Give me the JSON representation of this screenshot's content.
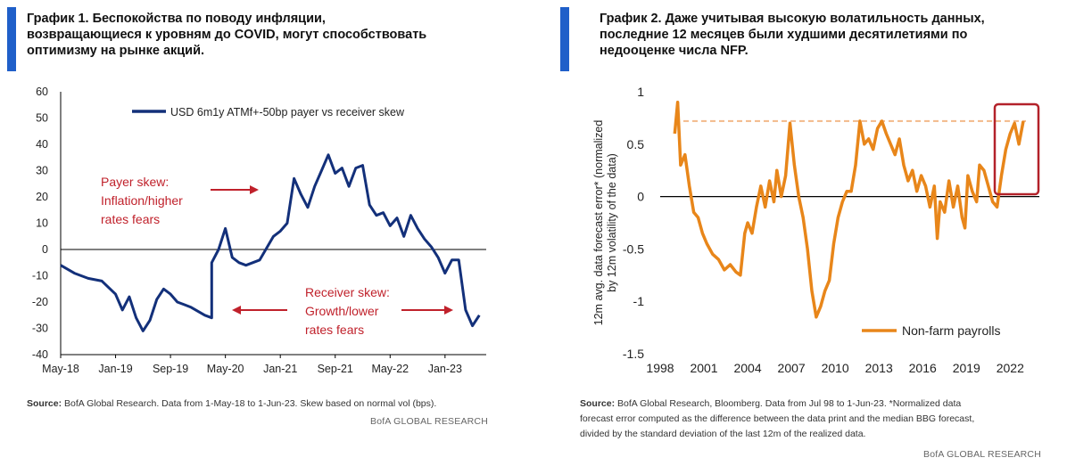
{
  "chart_data": [
    {
      "type": "line",
      "title_lines": [
        "График 1. Беспокойства по поводу инфляции,",
        "возвращающиеся к уровням до COVID, могут способствовать",
        "оптимизму на рынке акций."
      ],
      "legend": "USD 6m1y ATMf+-50bp payer vs receiver skew",
      "ylim": [
        -40,
        60
      ],
      "yticks": [
        "60",
        "50",
        "40",
        "30",
        "20",
        "10",
        "0",
        "-10",
        "-20",
        "-30",
        "-40"
      ],
      "xticks": [
        "May-18",
        "Jan-19",
        "Sep-19",
        "May-20",
        "Jan-21",
        "Sep-21",
        "May-22",
        "Jan-23"
      ],
      "series": [
        {
          "name": "USD 6m1y ATMf+-50bp payer vs receiver skew",
          "color": "#13307a",
          "points": [
            [
              "2018-05",
              -6
            ],
            [
              "2018-07",
              -9
            ],
            [
              "2018-09",
              -11
            ],
            [
              "2018-11",
              -12
            ],
            [
              "2019-01",
              -17
            ],
            [
              "2019-02",
              -23
            ],
            [
              "2019-03",
              -18
            ],
            [
              "2019-04",
              -26
            ],
            [
              "2019-05",
              -31
            ],
            [
              "2019-06",
              -27
            ],
            [
              "2019-07",
              -19
            ],
            [
              "2019-08",
              -15
            ],
            [
              "2019-09",
              -17
            ],
            [
              "2019-10",
              -20
            ],
            [
              "2019-11",
              -21
            ],
            [
              "2019-12",
              -22
            ],
            [
              "2020-02",
              -25
            ],
            [
              "2020-03",
              -26
            ],
            [
              "2020-03",
              -5
            ],
            [
              "2020-04",
              0
            ],
            [
              "2020-05",
              8
            ],
            [
              "2020-06",
              -3
            ],
            [
              "2020-07",
              -5
            ],
            [
              "2020-08",
              -6
            ],
            [
              "2020-10",
              -4
            ],
            [
              "2020-12",
              5
            ],
            [
              "2021-01",
              7
            ],
            [
              "2021-02",
              10
            ],
            [
              "2021-03",
              27
            ],
            [
              "2021-04",
              21
            ],
            [
              "2021-05",
              16
            ],
            [
              "2021-06",
              24
            ],
            [
              "2021-07",
              30
            ],
            [
              "2021-08",
              36
            ],
            [
              "2021-09",
              29
            ],
            [
              "2021-10",
              31
            ],
            [
              "2021-11",
              24
            ],
            [
              "2021-12",
              31
            ],
            [
              "2022-01",
              32
            ],
            [
              "2022-02",
              17
            ],
            [
              "2022-03",
              13
            ],
            [
              "2022-04",
              14
            ],
            [
              "2022-05",
              9
            ],
            [
              "2022-06",
              12
            ],
            [
              "2022-07",
              5
            ],
            [
              "2022-08",
              13
            ],
            [
              "2022-09",
              8
            ],
            [
              "2022-10",
              4
            ],
            [
              "2022-11",
              1
            ],
            [
              "2022-12",
              -3
            ],
            [
              "2023-01",
              -9
            ],
            [
              "2023-02",
              -4
            ],
            [
              "2023-03",
              -4
            ],
            [
              "2023-04",
              -23
            ],
            [
              "2023-05",
              -29
            ],
            [
              "2023-06",
              -25
            ]
          ]
        }
      ],
      "annotations": [
        {
          "lines": [
            "Payer skew:",
            "Inflation/higher",
            "rates fears"
          ],
          "color": "#c0212b"
        },
        {
          "lines": [
            "Receiver skew:",
            "Growth/lower",
            "rates fears"
          ],
          "color": "#c0212b"
        }
      ]
    },
    {
      "type": "line",
      "title_lines": [
        "График 2. Даже учитывая высокую волатильность данных,",
        "последние 12 месяцев были худшими десятилетиями по",
        "недооценке числа NFP."
      ],
      "ylabel_lines": [
        "12m avg. data forecast error* (normalized",
        "by 12m volatility of the data)"
      ],
      "legend": "Non-farm payrolls",
      "ylim": [
        -1.5,
        1
      ],
      "yticks": [
        "1",
        "0.5",
        "0",
        "-0.5",
        "-1",
        "-1.5"
      ],
      "xlim": [
        1998,
        2024
      ],
      "xticks": [
        "1998",
        "2001",
        "2004",
        "2007",
        "2010",
        "2013",
        "2016",
        "2019",
        "2022"
      ],
      "series": [
        {
          "name": "Non-farm payrolls",
          "color": "#e8861a",
          "points": [
            [
              1999.0,
              0.6
            ],
            [
              1999.2,
              0.9
            ],
            [
              1999.4,
              0.3
            ],
            [
              1999.7,
              0.4
            ],
            [
              2000.0,
              0.1
            ],
            [
              2000.3,
              -0.15
            ],
            [
              2000.6,
              -0.2
            ],
            [
              2000.9,
              -0.35
            ],
            [
              2001.2,
              -0.45
            ],
            [
              2001.6,
              -0.55
            ],
            [
              2002.0,
              -0.6
            ],
            [
              2002.4,
              -0.7
            ],
            [
              2002.8,
              -0.65
            ],
            [
              2003.2,
              -0.72
            ],
            [
              2003.5,
              -0.75
            ],
            [
              2003.8,
              -0.35
            ],
            [
              2004.0,
              -0.25
            ],
            [
              2004.3,
              -0.35
            ],
            [
              2004.6,
              -0.1
            ],
            [
              2004.9,
              0.1
            ],
            [
              2005.2,
              -0.1
            ],
            [
              2005.5,
              0.15
            ],
            [
              2005.8,
              -0.05
            ],
            [
              2006.0,
              0.25
            ],
            [
              2006.3,
              0.0
            ],
            [
              2006.6,
              0.2
            ],
            [
              2006.9,
              0.7
            ],
            [
              2007.2,
              0.3
            ],
            [
              2007.5,
              0.0
            ],
            [
              2007.8,
              -0.2
            ],
            [
              2008.1,
              -0.5
            ],
            [
              2008.4,
              -0.9
            ],
            [
              2008.7,
              -1.15
            ],
            [
              2009.0,
              -1.05
            ],
            [
              2009.3,
              -0.9
            ],
            [
              2009.6,
              -0.8
            ],
            [
              2009.9,
              -0.45
            ],
            [
              2010.2,
              -0.2
            ],
            [
              2010.5,
              -0.05
            ],
            [
              2010.8,
              0.05
            ],
            [
              2011.1,
              0.05
            ],
            [
              2011.4,
              0.3
            ],
            [
              2011.7,
              0.72
            ],
            [
              2012.0,
              0.5
            ],
            [
              2012.3,
              0.55
            ],
            [
              2012.6,
              0.45
            ],
            [
              2012.9,
              0.65
            ],
            [
              2013.2,
              0.72
            ],
            [
              2013.5,
              0.6
            ],
            [
              2013.8,
              0.5
            ],
            [
              2014.1,
              0.4
            ],
            [
              2014.4,
              0.55
            ],
            [
              2014.7,
              0.3
            ],
            [
              2015.0,
              0.15
            ],
            [
              2015.3,
              0.25
            ],
            [
              2015.6,
              0.05
            ],
            [
              2015.9,
              0.2
            ],
            [
              2016.2,
              0.1
            ],
            [
              2016.5,
              -0.1
            ],
            [
              2016.8,
              0.1
            ],
            [
              2017.0,
              -0.4
            ],
            [
              2017.2,
              -0.05
            ],
            [
              2017.5,
              -0.15
            ],
            [
              2017.8,
              0.15
            ],
            [
              2018.1,
              -0.1
            ],
            [
              2018.4,
              0.1
            ],
            [
              2018.7,
              -0.2
            ],
            [
              2018.9,
              -0.3
            ],
            [
              2019.1,
              0.2
            ],
            [
              2019.4,
              0.05
            ],
            [
              2019.7,
              -0.05
            ],
            [
              2019.9,
              0.3
            ],
            [
              2020.2,
              0.25
            ],
            [
              2020.5,
              0.1
            ],
            [
              2020.8,
              -0.05
            ],
            [
              2021.1,
              -0.1
            ],
            [
              2021.4,
              0.2
            ],
            [
              2021.7,
              0.45
            ],
            [
              2022.0,
              0.6
            ],
            [
              2022.3,
              0.7
            ],
            [
              2022.6,
              0.5
            ],
            [
              2022.9,
              0.72
            ]
          ]
        }
      ],
      "reference_line": {
        "y": 0.72,
        "style": "dashed",
        "color": "#f3b98a"
      },
      "highlight_box_color": "#b3222a"
    }
  ],
  "sources": [
    {
      "label": "Source:",
      "lines": [
        "BofA Global Research. Data from 1-May-18 to 1-Jun-23. Skew based on normal vol (bps)."
      ]
    },
    {
      "label": "Source:",
      "lines": [
        "BofA Global Research, Bloomberg. Data from Jul 98 to 1-Jun-23. *Normalized data",
        "forecast error computed as the difference between the data print and the median BBG forecast,",
        "divided by the standard deviation of the last 12m of the realized data."
      ]
    }
  ],
  "brand": "BofA GLOBAL RESEARCH",
  "colors": {
    "accent_bar": "#1f5fc9",
    "navy_series": "#13307a",
    "orange_series": "#e8861a",
    "annotation_red": "#c0212b"
  }
}
